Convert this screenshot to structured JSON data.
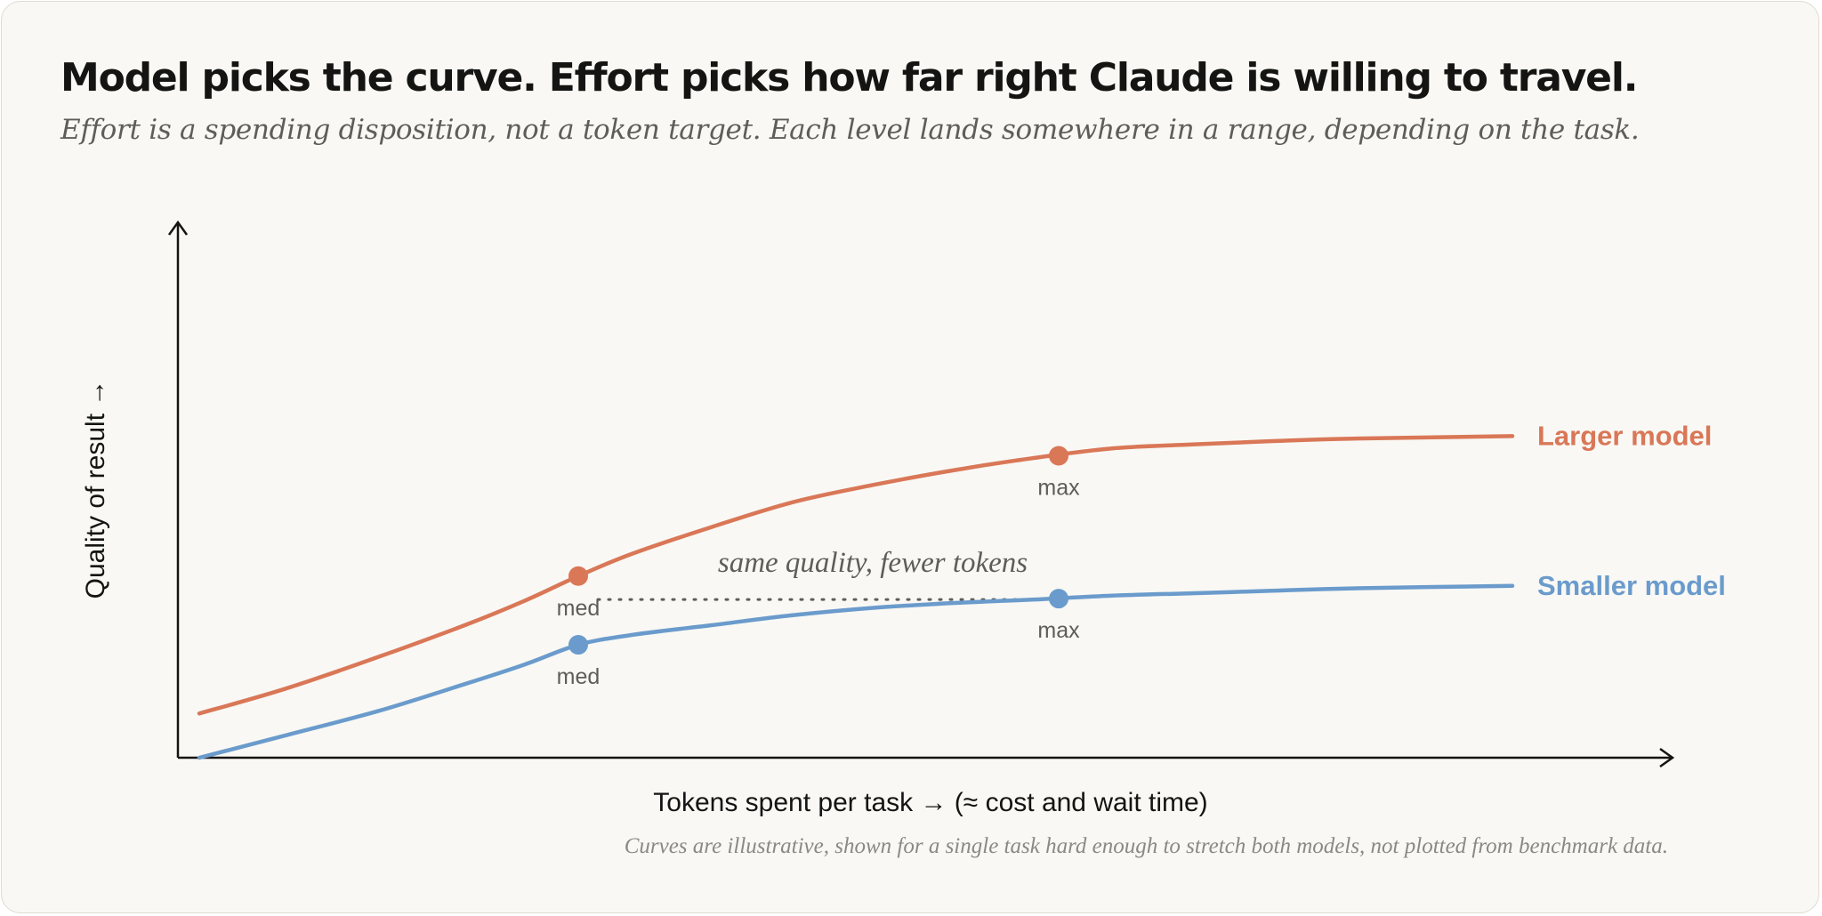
{
  "header": {
    "title": "Model picks the curve. Effort picks how far right Claude is willing to travel.",
    "subtitle": "Effort is a spending disposition, not a token target. Each level lands somewhere in a range, depending on the task."
  },
  "footnote": "Curves are illustrative, shown for a single task hard enough to stretch both models, not plotted from benchmark data.",
  "colors": {
    "larger": "#d97757",
    "smaller": "#6a9bcc",
    "axis": "#141413"
  },
  "chart_data": {
    "type": "line",
    "xlabel": "Tokens spent per task → (≈ cost and wait time)",
    "ylabel": "Quality of result →",
    "xlim": [
      0,
      100
    ],
    "ylim": [
      0,
      100
    ],
    "grid": false,
    "legend": "right-inline",
    "series": [
      {
        "name": "Larger model",
        "color": "#d97757",
        "points": [
          [
            1.6,
            9
          ],
          [
            8,
            14
          ],
          [
            15,
            20.5
          ],
          [
            21.5,
            27
          ],
          [
            26,
            32
          ],
          [
            30,
            37
          ],
          [
            34,
            41.5
          ],
          [
            40,
            47
          ],
          [
            46,
            52
          ],
          [
            52,
            55.5
          ],
          [
            58,
            58.5
          ],
          [
            64,
            61
          ],
          [
            70,
            63
          ],
          [
            76,
            63.8
          ],
          [
            82,
            64.5
          ],
          [
            88,
            65
          ],
          [
            100,
            65.5
          ]
        ],
        "markers": [
          {
            "x": 30,
            "y": 37,
            "label": "med"
          },
          {
            "x": 66,
            "y": 61.5,
            "label": "max"
          }
        ]
      },
      {
        "name": "Smaller model",
        "color": "#6a9bcc",
        "points": [
          [
            1.6,
            0
          ],
          [
            8,
            4.5
          ],
          [
            15,
            9.5
          ],
          [
            21.5,
            15
          ],
          [
            26,
            19
          ],
          [
            30,
            23
          ],
          [
            34,
            25
          ],
          [
            40,
            27
          ],
          [
            46,
            29
          ],
          [
            52,
            30.5
          ],
          [
            58,
            31.5
          ],
          [
            64,
            32.2
          ],
          [
            70,
            33
          ],
          [
            76,
            33.5
          ],
          [
            82,
            34
          ],
          [
            88,
            34.5
          ],
          [
            100,
            35
          ]
        ],
        "markers": [
          {
            "x": 30,
            "y": 23,
            "label": "med"
          },
          {
            "x": 66,
            "y": 32.4,
            "label": "max"
          }
        ]
      }
    ],
    "annotations": [
      {
        "text": "same quality, fewer tokens",
        "from_x": 30,
        "to_x": 66,
        "y": 32.4,
        "style": "dotted"
      }
    ]
  }
}
